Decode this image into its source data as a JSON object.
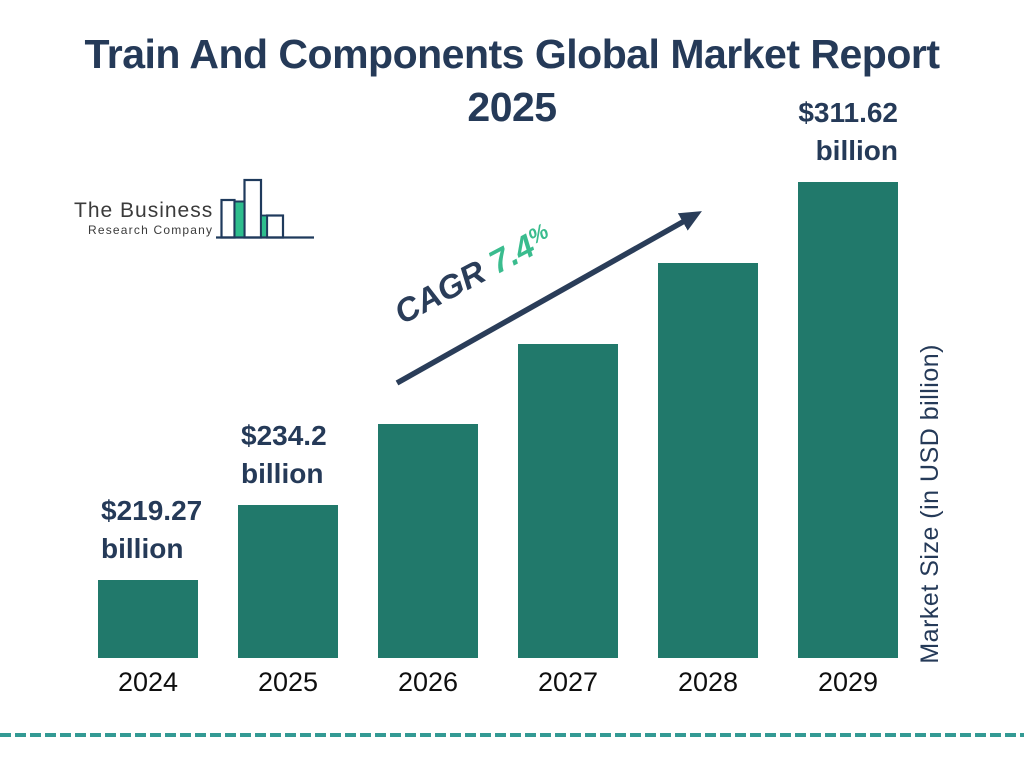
{
  "title": {
    "line1": "Train And Components Global Market Report",
    "line2": "2025"
  },
  "logo": {
    "name": "The Business",
    "subtitle": "Research Company"
  },
  "cagr": {
    "label": "CAGR",
    "value": "7.4",
    "percent_sign": "%"
  },
  "chart_data": {
    "type": "bar",
    "title": "Train And Components Global Market Report 2025",
    "categories": [
      "2024",
      "2025",
      "2026",
      "2027",
      "2028",
      "2029"
    ],
    "values": [
      219.27,
      234.2,
      251.56,
      270.18,
      290.17,
      311.62
    ],
    "ylabel": "Market Size (in USD billion)",
    "cagr_text": "CAGR 7.4%",
    "legend": "none",
    "grid": "off",
    "bar_color": "#21796B",
    "value_labels": [
      {
        "bar_index": 0,
        "amount": "$219.27",
        "unit": "billion",
        "align": "left"
      },
      {
        "bar_index": 1,
        "amount": "$234.2",
        "unit": "billion",
        "align": "left"
      },
      {
        "bar_index": 5,
        "amount": "$311.62",
        "unit": "billion",
        "align": "right"
      }
    ]
  },
  "colors": {
    "bar_teal": "#21796B",
    "navy_text": "#253A58",
    "accent_green": "#3ABC8E",
    "dashed_line_teal": "#339A94",
    "logo_green": "#2EBD8D",
    "logo_outline_navy": "#1F3A5C"
  }
}
